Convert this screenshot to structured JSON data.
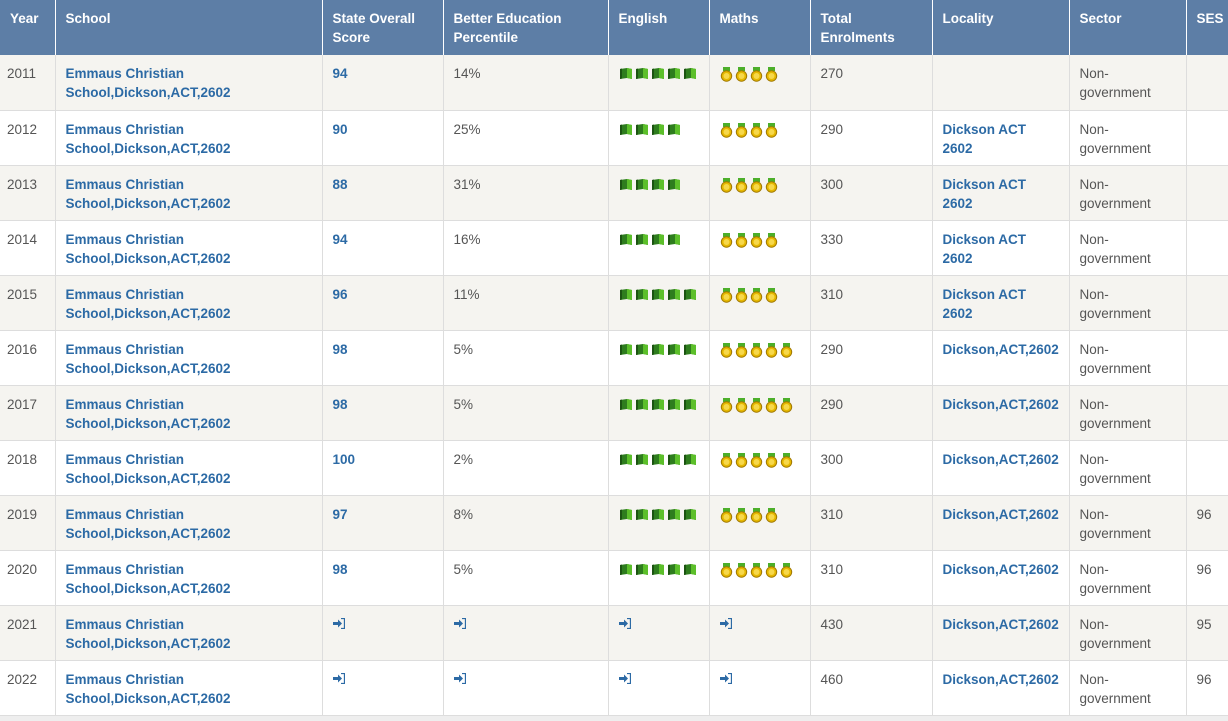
{
  "headers": [
    "Year",
    "School",
    "State Overall Score",
    "Better Education Percentile",
    "English",
    "Maths",
    "Total Enrolments",
    "Locality",
    "Sector",
    "SES"
  ],
  "rows": [
    {
      "year": "2011",
      "school": "Emmaus Christian School,Dickson,ACT,2602",
      "score": "94",
      "pct": "14%",
      "english": 5,
      "maths": 4,
      "enrol": "270",
      "locality": "",
      "sector": "Non-government",
      "ses": ""
    },
    {
      "year": "2012",
      "school": "Emmaus Christian School,Dickson,ACT,2602",
      "score": "90",
      "pct": "25%",
      "english": 4,
      "maths": 4,
      "enrol": "290",
      "locality": "Dickson ACT 2602",
      "sector": "Non-government",
      "ses": ""
    },
    {
      "year": "2013",
      "school": "Emmaus Christian School,Dickson,ACT,2602",
      "score": "88",
      "pct": "31%",
      "english": 4,
      "maths": 4,
      "enrol": "300",
      "locality": "Dickson ACT 2602",
      "sector": "Non-government",
      "ses": ""
    },
    {
      "year": "2014",
      "school": "Emmaus Christian School,Dickson,ACT,2602",
      "score": "94",
      "pct": "16%",
      "english": 4,
      "maths": 4,
      "enrol": "330",
      "locality": "Dickson ACT 2602",
      "sector": "Non-government",
      "ses": ""
    },
    {
      "year": "2015",
      "school": "Emmaus Christian School,Dickson,ACT,2602",
      "score": "96",
      "pct": "11%",
      "english": 5,
      "maths": 4,
      "enrol": "310",
      "locality": "Dickson ACT 2602",
      "sector": "Non-government",
      "ses": ""
    },
    {
      "year": "2016",
      "school": "Emmaus Christian School,Dickson,ACT,2602",
      "score": "98",
      "pct": "5%",
      "english": 5,
      "maths": 5,
      "enrol": "290",
      "locality": "Dickson,ACT,2602",
      "sector": "Non-government",
      "ses": ""
    },
    {
      "year": "2017",
      "school": "Emmaus Christian School,Dickson,ACT,2602",
      "score": "98",
      "pct": "5%",
      "english": 5,
      "maths": 5,
      "enrol": "290",
      "locality": "Dickson,ACT,2602",
      "sector": "Non-government",
      "ses": ""
    },
    {
      "year": "2018",
      "school": "Emmaus Christian School,Dickson,ACT,2602",
      "score": "100",
      "pct": "2%",
      "english": 5,
      "maths": 5,
      "enrol": "300",
      "locality": "Dickson,ACT,2602",
      "sector": "Non-government",
      "ses": ""
    },
    {
      "year": "2019",
      "school": "Emmaus Christian School,Dickson,ACT,2602",
      "score": "97",
      "pct": "8%",
      "english": 5,
      "maths": 4,
      "enrol": "310",
      "locality": "Dickson,ACT,2602",
      "sector": "Non-government",
      "ses": "96"
    },
    {
      "year": "2020",
      "school": "Emmaus Christian School,Dickson,ACT,2602",
      "score": "98",
      "pct": "5%",
      "english": 5,
      "maths": 5,
      "enrol": "310",
      "locality": "Dickson,ACT,2602",
      "sector": "Non-government",
      "ses": "96"
    },
    {
      "year": "2021",
      "school": "Emmaus Christian School,Dickson,ACT,2602",
      "score": "sign-in-icon",
      "pct": "sign-in-icon",
      "english": "sign-in-icon",
      "maths": "sign-in-icon",
      "enrol": "430",
      "locality": "Dickson,ACT,2602",
      "sector": "Non-government",
      "ses": "95"
    },
    {
      "year": "2022",
      "school": "Emmaus Christian School,Dickson,ACT,2602",
      "score": "sign-in-icon",
      "pct": "sign-in-icon",
      "english": "sign-in-icon",
      "maths": "sign-in-icon",
      "enrol": "460",
      "locality": "Dickson,ACT,2602",
      "sector": "Non-government",
      "ses": "96"
    }
  ],
  "icons": {
    "english": "book-icon",
    "maths": "medal-icon",
    "locked": "sign-in-icon"
  },
  "colors": {
    "header_bg": "#5d7ea6",
    "link": "#2c6aa5",
    "row_alt": "#f5f4f0"
  }
}
